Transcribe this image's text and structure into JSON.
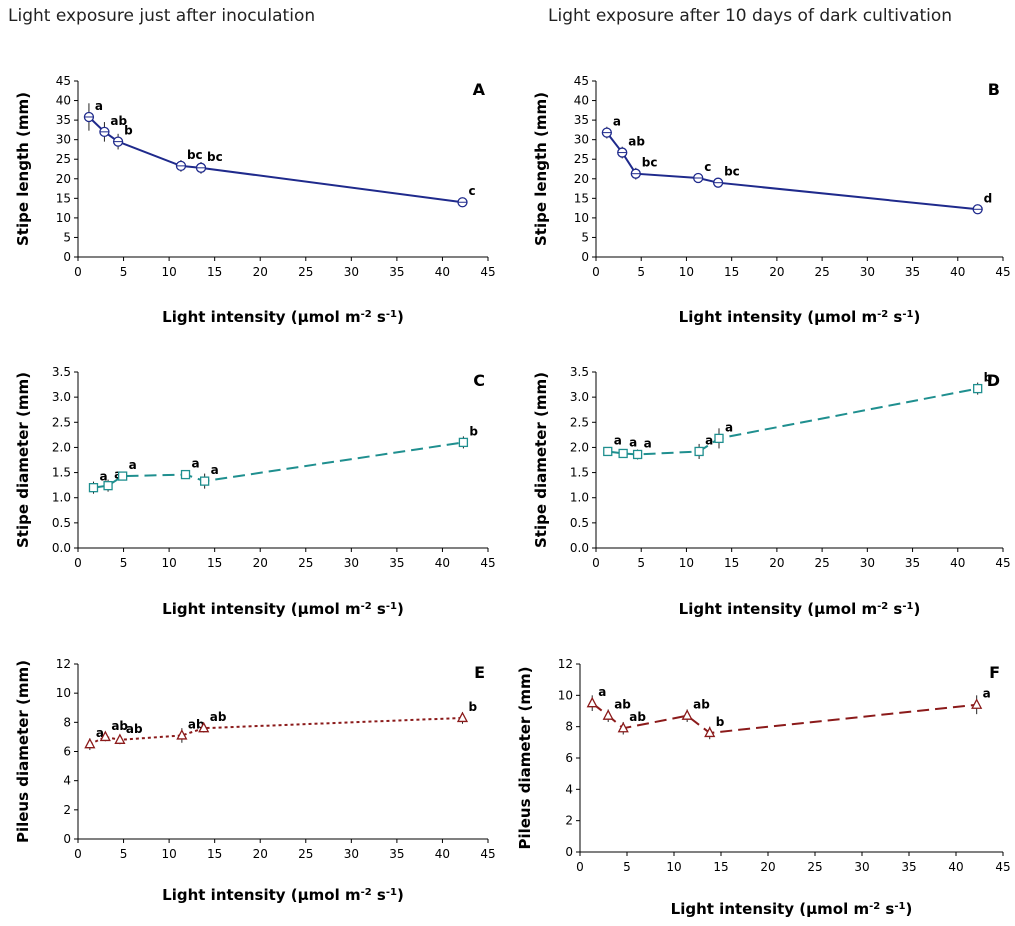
{
  "column_titles": {
    "left": "Light exposure just after inoculation",
    "right": "Light exposure after 10 days of dark cultivation"
  },
  "chart_data": [
    {
      "id": "A",
      "panel_label": "A",
      "type": "line",
      "xlabel": "Light intensity (µmol m⁻² s⁻¹)",
      "ylabel": "Stipe length (mm)",
      "xlim": [
        0,
        45
      ],
      "xticks": [
        0,
        5,
        10,
        15,
        20,
        25,
        30,
        35,
        40,
        45
      ],
      "ylim": [
        0,
        45
      ],
      "yticks": [
        0,
        5,
        10,
        15,
        20,
        25,
        30,
        35,
        40,
        45
      ],
      "ytick_labels": [
        "0",
        "5",
        "10",
        "15",
        "20",
        "25",
        "30",
        "35",
        "40",
        "45"
      ],
      "series_color": "#1f2a8c",
      "line_style": "solid",
      "marker": "circle",
      "points": [
        {
          "x": 1.2,
          "y": 35.8,
          "err": 3.5,
          "label": "a"
        },
        {
          "x": 2.9,
          "y": 32.0,
          "err": 2.5,
          "label": "ab"
        },
        {
          "x": 4.4,
          "y": 29.5,
          "err": 2.0,
          "label": "b"
        },
        {
          "x": 11.3,
          "y": 23.3,
          "err": 1.5,
          "label": "bc"
        },
        {
          "x": 13.5,
          "y": 22.8,
          "err": 1.5,
          "label": "bc"
        },
        {
          "x": 42.2,
          "y": 14.0,
          "err": 1.0,
          "label": "c"
        }
      ]
    },
    {
      "id": "B",
      "panel_label": "B",
      "type": "line",
      "xlabel": "Light intensity (µmol m⁻² s⁻¹)",
      "ylabel": "Stipe length (mm)",
      "xlim": [
        0,
        45
      ],
      "xticks": [
        0,
        5,
        10,
        15,
        20,
        25,
        30,
        35,
        40,
        45
      ],
      "ylim": [
        0,
        45
      ],
      "yticks": [
        0,
        5,
        10,
        15,
        20,
        25,
        30,
        35,
        40,
        45
      ],
      "ytick_labels": [
        "0",
        "5",
        "10",
        "15",
        "20",
        "25",
        "30",
        "35",
        "40",
        "45"
      ],
      "series_color": "#1f2a8c",
      "line_style": "solid",
      "marker": "circle",
      "points": [
        {
          "x": 1.2,
          "y": 31.8,
          "err": 1.5,
          "label": "a"
        },
        {
          "x": 2.9,
          "y": 26.7,
          "err": 1.5,
          "label": "ab"
        },
        {
          "x": 4.4,
          "y": 21.3,
          "err": 1.5,
          "label": "bc"
        },
        {
          "x": 11.3,
          "y": 20.2,
          "err": 1.0,
          "label": "c"
        },
        {
          "x": 13.5,
          "y": 19.0,
          "err": 1.0,
          "label": "bc"
        },
        {
          "x": 42.2,
          "y": 12.2,
          "err": 0.8,
          "label": "d"
        }
      ]
    },
    {
      "id": "C",
      "panel_label": "C",
      "type": "line",
      "xlabel": "Light intensity (µmol m⁻² s⁻¹)",
      "ylabel": "Stipe diameter (mm)",
      "xlim": [
        0,
        45
      ],
      "xticks": [
        0,
        5,
        10,
        15,
        20,
        25,
        30,
        35,
        40,
        45
      ],
      "ylim": [
        0,
        3.5
      ],
      "yticks": [
        0,
        0.5,
        1,
        1.5,
        2,
        2.5,
        3,
        3.5
      ],
      "ytick_labels": [
        "0.0",
        "0.5",
        "1.0",
        "1.5",
        "2.0",
        "2.5",
        "3.0",
        "3.5"
      ],
      "series_color": "#1f8f8f",
      "line_style": "dashed",
      "marker": "square",
      "points": [
        {
          "x": 1.7,
          "y": 1.2,
          "err": 0.12,
          "label": "a"
        },
        {
          "x": 3.3,
          "y": 1.24,
          "err": 0.12,
          "label": "a"
        },
        {
          "x": 4.9,
          "y": 1.43,
          "err": 0.08,
          "label": "a"
        },
        {
          "x": 11.8,
          "y": 1.46,
          "err": 0.08,
          "label": "a"
        },
        {
          "x": 13.9,
          "y": 1.33,
          "err": 0.15,
          "label": "a"
        },
        {
          "x": 42.3,
          "y": 2.1,
          "err": 0.12,
          "label": "b"
        }
      ]
    },
    {
      "id": "D",
      "panel_label": "D",
      "type": "line",
      "xlabel": "Light intensity (µmol m⁻² s⁻¹)",
      "ylabel": "Stipe diameter (mm)",
      "xlim": [
        0,
        45
      ],
      "xticks": [
        0,
        5,
        10,
        15,
        20,
        25,
        30,
        35,
        40,
        45
      ],
      "ylim": [
        0,
        3.5
      ],
      "yticks": [
        0,
        0.5,
        1,
        1.5,
        2,
        2.5,
        3,
        3.5
      ],
      "ytick_labels": [
        "0.0",
        "0.5",
        "1.0",
        "1.5",
        "2.0",
        "2.5",
        "3.0",
        "3.5"
      ],
      "series_color": "#1f8f8f",
      "line_style": "dashed",
      "marker": "square",
      "points": [
        {
          "x": 1.3,
          "y": 1.92,
          "err": 0.08,
          "label": "a"
        },
        {
          "x": 3.0,
          "y": 1.88,
          "err": 0.08,
          "label": "a"
        },
        {
          "x": 4.6,
          "y": 1.86,
          "err": 0.1,
          "label": "a"
        },
        {
          "x": 11.4,
          "y": 1.92,
          "err": 0.15,
          "label": "a"
        },
        {
          "x": 13.6,
          "y": 2.18,
          "err": 0.2,
          "label": "a"
        },
        {
          "x": 42.2,
          "y": 3.17,
          "err": 0.12,
          "label": "b"
        }
      ]
    },
    {
      "id": "E",
      "panel_label": "E",
      "type": "line",
      "xlabel": "Light intensity (µmol m⁻² s⁻¹)",
      "ylabel": "Pileus diameter (mm)",
      "xlim": [
        0,
        45
      ],
      "xticks": [
        0,
        5,
        10,
        15,
        20,
        25,
        30,
        35,
        40,
        45
      ],
      "ylim": [
        0,
        12
      ],
      "yticks": [
        0,
        2,
        4,
        6,
        8,
        10,
        12
      ],
      "ytick_labels": [
        "0",
        "2",
        "4",
        "6",
        "8",
        "10",
        "12"
      ],
      "series_color": "#8b1a1a",
      "line_style": "dotted",
      "marker": "triangle",
      "points": [
        {
          "x": 1.3,
          "y": 6.5,
          "err": 0.4,
          "label": "a"
        },
        {
          "x": 3.0,
          "y": 7.0,
          "err": 0.3,
          "label": "ab"
        },
        {
          "x": 4.6,
          "y": 6.8,
          "err": 0.3,
          "label": "ab"
        },
        {
          "x": 11.4,
          "y": 7.1,
          "err": 0.5,
          "label": "ab"
        },
        {
          "x": 13.8,
          "y": 7.6,
          "err": 0.3,
          "label": "ab"
        },
        {
          "x": 42.2,
          "y": 8.3,
          "err": 0.4,
          "label": "b"
        }
      ]
    },
    {
      "id": "F",
      "panel_label": "F",
      "type": "line",
      "xlabel": "Light intensity (µmol m⁻² s⁻¹)",
      "ylabel": "Pileus diameter (mm)",
      "xlim": [
        0,
        45
      ],
      "xticks": [
        0,
        5,
        10,
        15,
        20,
        25,
        30,
        35,
        40,
        45
      ],
      "ylim": [
        0,
        12
      ],
      "yticks": [
        0,
        2,
        4,
        6,
        8,
        10,
        12
      ],
      "ytick_labels": [
        "0",
        "2",
        "4",
        "6",
        "8",
        "10",
        "12"
      ],
      "series_color": "#8b1a1a",
      "line_style": "dashed",
      "marker": "triangle",
      "points": [
        {
          "x": 1.3,
          "y": 9.5,
          "err": 0.5,
          "label": "a"
        },
        {
          "x": 3.0,
          "y": 8.7,
          "err": 0.4,
          "label": "ab"
        },
        {
          "x": 4.6,
          "y": 7.9,
          "err": 0.4,
          "label": "ab"
        },
        {
          "x": 11.4,
          "y": 8.7,
          "err": 0.4,
          "label": "ab"
        },
        {
          "x": 13.8,
          "y": 7.6,
          "err": 0.4,
          "label": "b"
        },
        {
          "x": 42.2,
          "y": 9.4,
          "err": 0.6,
          "label": "a"
        }
      ]
    }
  ]
}
